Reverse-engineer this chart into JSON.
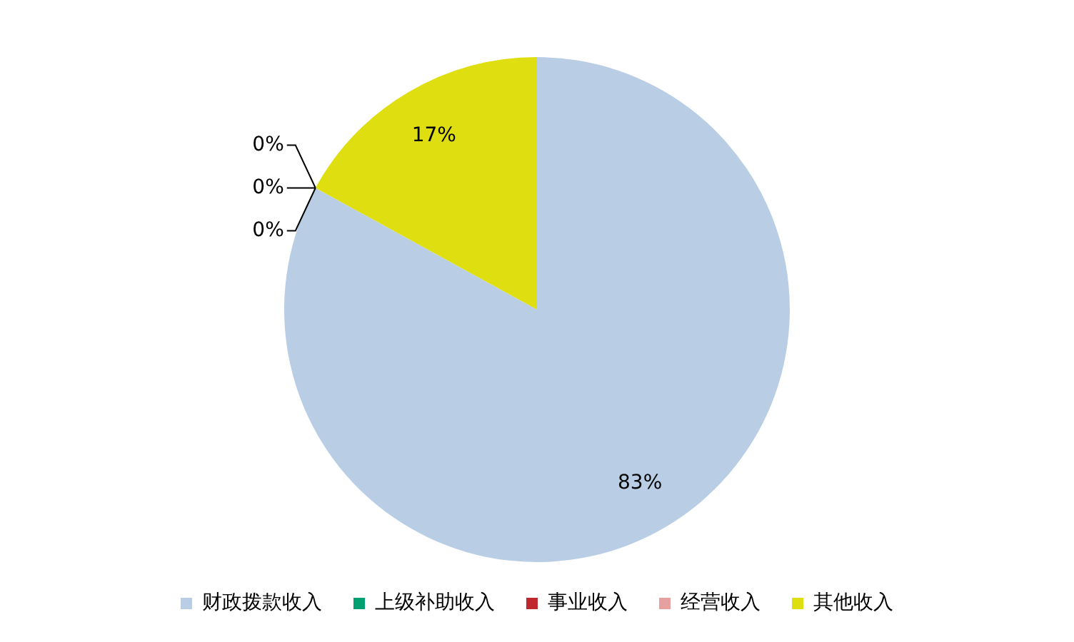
{
  "chart_data": {
    "type": "pie",
    "categories": [
      "财政拨款收入",
      "上级补助收入",
      "事业收入",
      "经营收入",
      "其他收入"
    ],
    "values": [
      83,
      0,
      0,
      0,
      17
    ],
    "colors": [
      "#b9cde5",
      "#00a070",
      "#c0282d",
      "#e6a0a0",
      "#dede10"
    ],
    "value_labels": [
      "83%",
      "0%",
      "0%",
      "0%",
      "17%"
    ],
    "legend": "bottom"
  }
}
